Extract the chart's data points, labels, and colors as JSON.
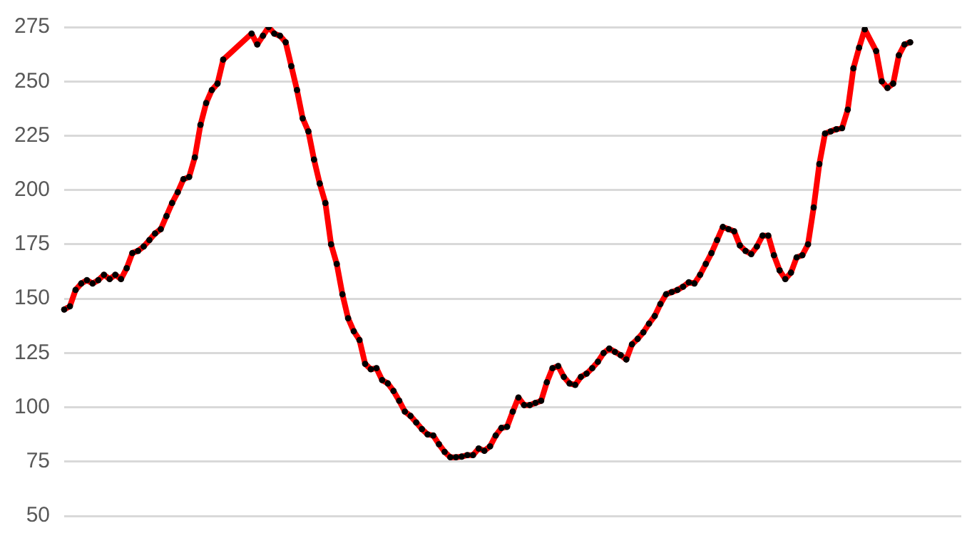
{
  "chart_data": {
    "type": "line",
    "categories": [
      null,
      null,
      null,
      null,
      null,
      null,
      null,
      null,
      null,
      null,
      null,
      null,
      null,
      null,
      null,
      null,
      null,
      null,
      null,
      null,
      null,
      null,
      null,
      null,
      null,
      null,
      null,
      null,
      null,
      null,
      null,
      null,
      null,
      null,
      null,
      null,
      null,
      null,
      null,
      null,
      null,
      null,
      null,
      null,
      null,
      null,
      null,
      null,
      null,
      null,
      null,
      null,
      null,
      null,
      null,
      null,
      null,
      null,
      null,
      null,
      null,
      null,
      null,
      null,
      null,
      null,
      null,
      null,
      null,
      null,
      null,
      null,
      null,
      null,
      null,
      null,
      null,
      null,
      null,
      null,
      null,
      null,
      null,
      null,
      null,
      null,
      null,
      null,
      null,
      null,
      null,
      null,
      null,
      null,
      null,
      null,
      null,
      null,
      null,
      null,
      null,
      null,
      null,
      null,
      null,
      null,
      null,
      null,
      null,
      null,
      null,
      null,
      null,
      null,
      null,
      null,
      null,
      null,
      null,
      null,
      null,
      null,
      null,
      null,
      null,
      null,
      null,
      null,
      null,
      null,
      null,
      null,
      null,
      null,
      null,
      null,
      null,
      null,
      null,
      null,
      null,
      null,
      null,
      null,
      null,
      null,
      null,
      null,
      null,
      null,
      null,
      null,
      null,
      null,
      null,
      null,
      null,
      null,
      null
    ],
    "series": [
      {
        "color": "#ff0000",
        "values": [
          145,
          146.5,
          154,
          157,
          158.5,
          157,
          158.5,
          161,
          159,
          161,
          159,
          164,
          171,
          172,
          174,
          177,
          180,
          182,
          188,
          194,
          199,
          205,
          206,
          215,
          230,
          240,
          246,
          249,
          260,
          null,
          null,
          null,
          null,
          272,
          267,
          271,
          275,
          272,
          271,
          268,
          257,
          246,
          233,
          227,
          214,
          203,
          194,
          175,
          166,
          152,
          141,
          135,
          131,
          120,
          117.5,
          118,
          112.5,
          111,
          107.5,
          103,
          98,
          96,
          93,
          90,
          87.5,
          87,
          83,
          79.5,
          77,
          77,
          77.3,
          78,
          78,
          81,
          80,
          82,
          87,
          90.5,
          91,
          98,
          104.5,
          101,
          101,
          102,
          103,
          111.5,
          118,
          119,
          114,
          111,
          110.3,
          114,
          115.5,
          118,
          121,
          125,
          127,
          125.5,
          124,
          122,
          129,
          131.5,
          134.5,
          138.5,
          142,
          147.5,
          152,
          153,
          154,
          155.5,
          157.5,
          157,
          161,
          166,
          171,
          177,
          183,
          182,
          181,
          174.5,
          172,
          170.5,
          174,
          179,
          179,
          170,
          163,
          159,
          162,
          169,
          170,
          175,
          192,
          212,
          226,
          227,
          228,
          228.5,
          237,
          256,
          265.5,
          274,
          null,
          264,
          250,
          247,
          249,
          262,
          267,
          268,
          null,
          null,
          null,
          null,
          null,
          null,
          null,
          null,
          null
        ]
      }
    ],
    "ylim": [
      50,
      275
    ],
    "yticks": [
      50,
      75,
      100,
      125,
      150,
      175,
      200,
      225,
      250,
      275
    ],
    "grid": "y",
    "tick_labels": "y",
    "legend": false,
    "marker": "circle",
    "line_style": "solid"
  }
}
